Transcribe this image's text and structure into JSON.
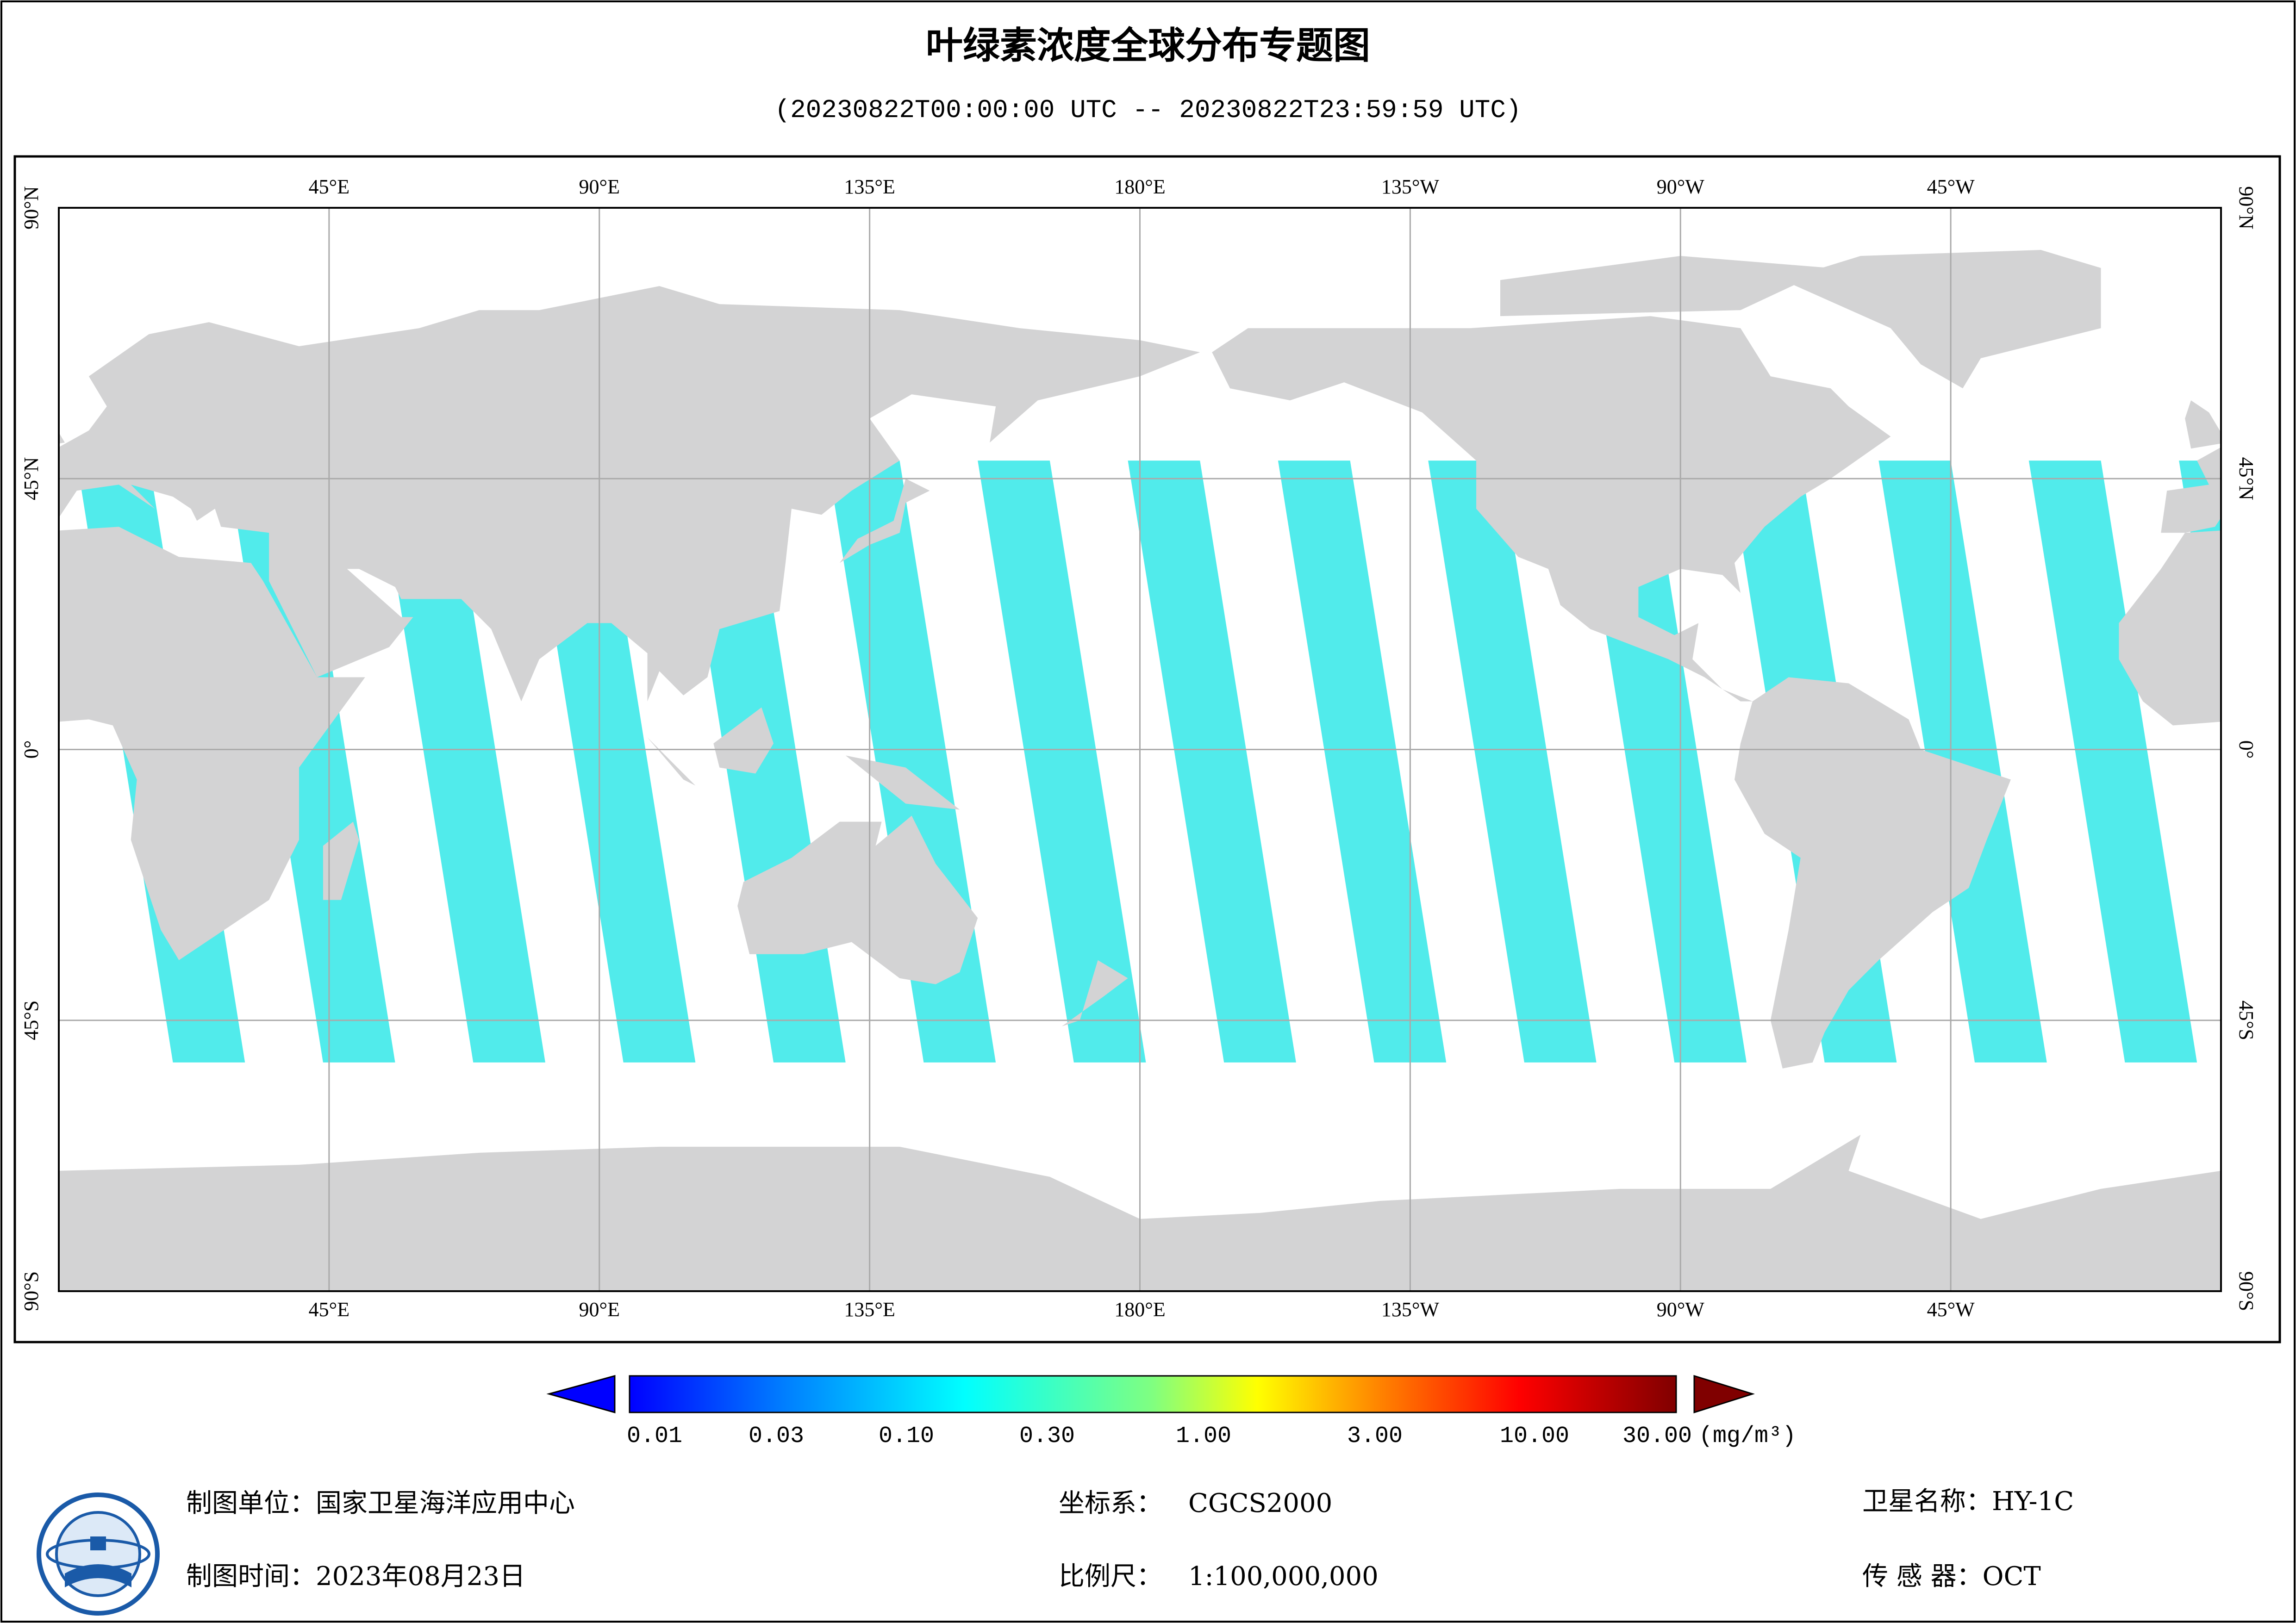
{
  "header": {
    "title": "叶绿素浓度全球分布专题图",
    "subtitle": "(20230822T00:00:00 UTC -- 20230822T23:59:59 UTC)"
  },
  "map": {
    "lon_labels": [
      "45°E",
      "90°E",
      "135°E",
      "180°E",
      "135°W",
      "90°W",
      "45°W"
    ],
    "lat_labels": [
      "90°N",
      "45°N",
      "0°",
      "45°S",
      "90°S"
    ]
  },
  "colorbar": {
    "ticks": [
      "0.01",
      "0.03",
      "0.10",
      "0.30",
      "1.00",
      "3.00",
      "10.00",
      "30.00"
    ],
    "unit": "(mg/m³)"
  },
  "footer": {
    "items": [
      {
        "label": "制图单位：",
        "value": "国家卫星海洋应用中心"
      },
      {
        "label": "制图时间：",
        "value": "2023年08月23日"
      },
      {
        "label": "坐标系：",
        "value": "CGCS2000"
      },
      {
        "label": "比例尺：",
        "value": "1:100,000,000"
      },
      {
        "label": "卫星名称：",
        "value": "HY-1C"
      },
      {
        "label": "传 感 器：",
        "value": "OCT"
      }
    ]
  }
}
